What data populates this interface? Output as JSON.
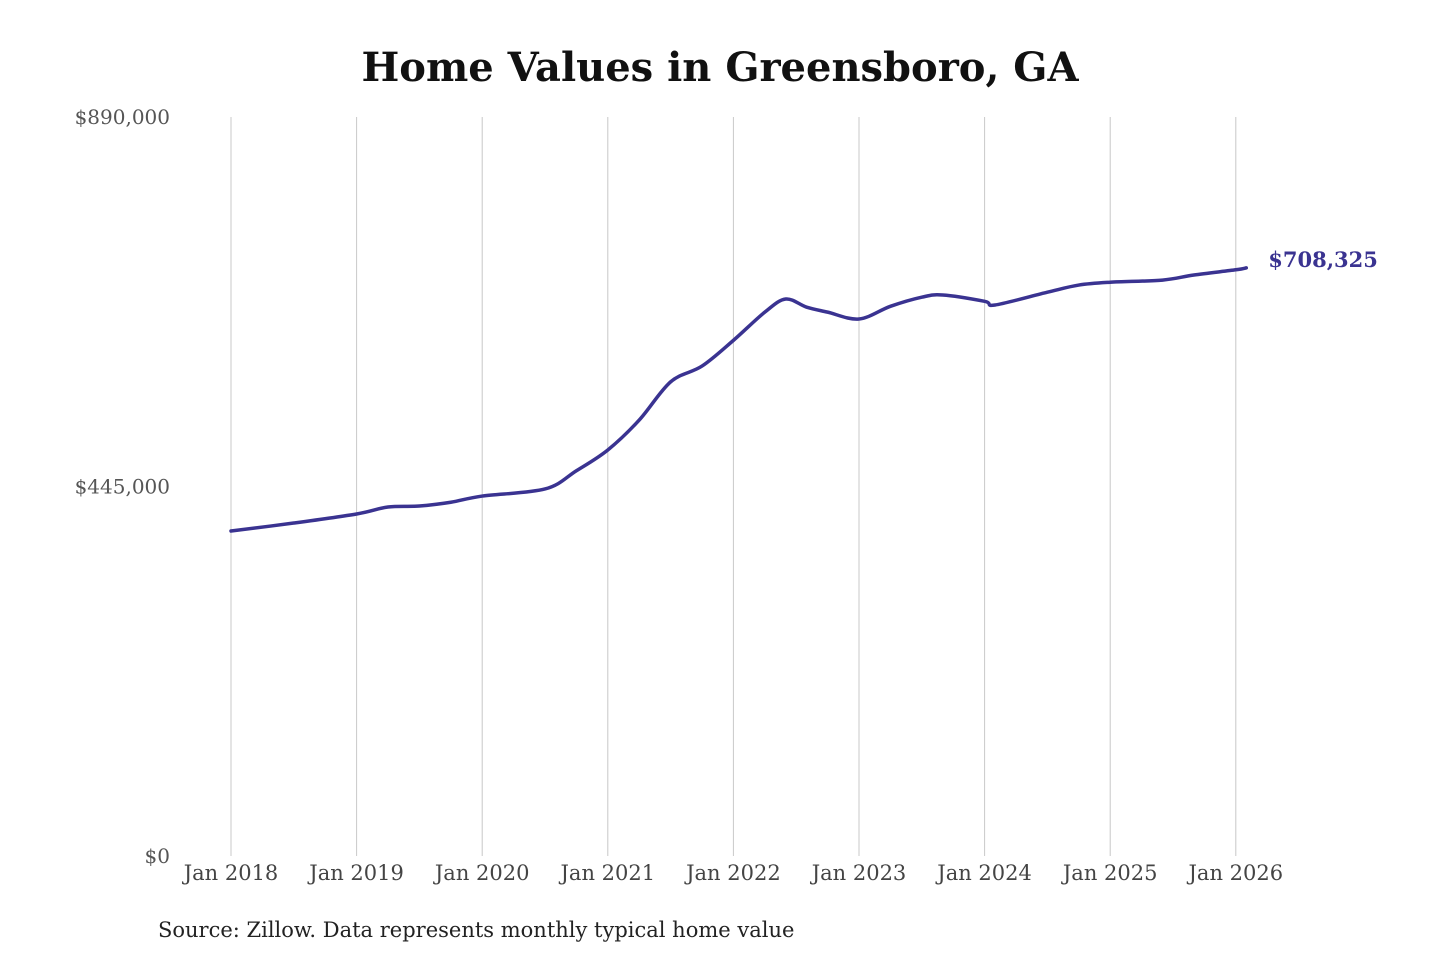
{
  "chart_data": {
    "type": "line",
    "title": "Home Values in Greensboro, GA",
    "xlabel": "",
    "ylabel": "",
    "ylim": [
      0,
      890000
    ],
    "yticks": [
      {
        "value": 0,
        "label": "$0"
      },
      {
        "value": 445000,
        "label": "$445,000"
      },
      {
        "value": 890000,
        "label": "$890,000"
      }
    ],
    "xticks": [
      "Jan 2018",
      "Jan 2019",
      "Jan 2020",
      "Jan 2021",
      "Jan 2022",
      "Jan 2023",
      "Jan 2024",
      "Jan 2025",
      "Jan 2026"
    ],
    "grid": "vertical",
    "line_color": "#3a3391",
    "end_label": "$708,325",
    "series": [
      {
        "x": [
          "2018-01",
          "2018-07",
          "2019-01",
          "2019-04",
          "2019-07",
          "2019-10",
          "2020-01",
          "2020-07",
          "2020-10",
          "2021-01",
          "2021-04",
          "2021-07",
          "2021-10",
          "2022-01",
          "2022-04",
          "2022-06",
          "2022-08",
          "2022-10",
          "2023-01",
          "2023-04",
          "2023-07",
          "2023-09",
          "2024-01",
          "2024-02",
          "2024-07",
          "2024-10",
          "2025-01",
          "2025-06",
          "2025-09",
          "2026-01",
          "2026-02"
        ],
        "values": [
          391400,
          401000,
          411900,
          420300,
          421500,
          426000,
          433500,
          442000,
          464000,
          489000,
          525000,
          571000,
          590000,
          621000,
          655000,
          670800,
          661000,
          655000,
          646700,
          662000,
          673000,
          675600,
          668000,
          663600,
          679000,
          687600,
          691000,
          693600,
          699700,
          706000,
          708325
        ]
      }
    ]
  },
  "footer": {
    "source": "Source: Zillow. Data represents monthly typical home value"
  }
}
